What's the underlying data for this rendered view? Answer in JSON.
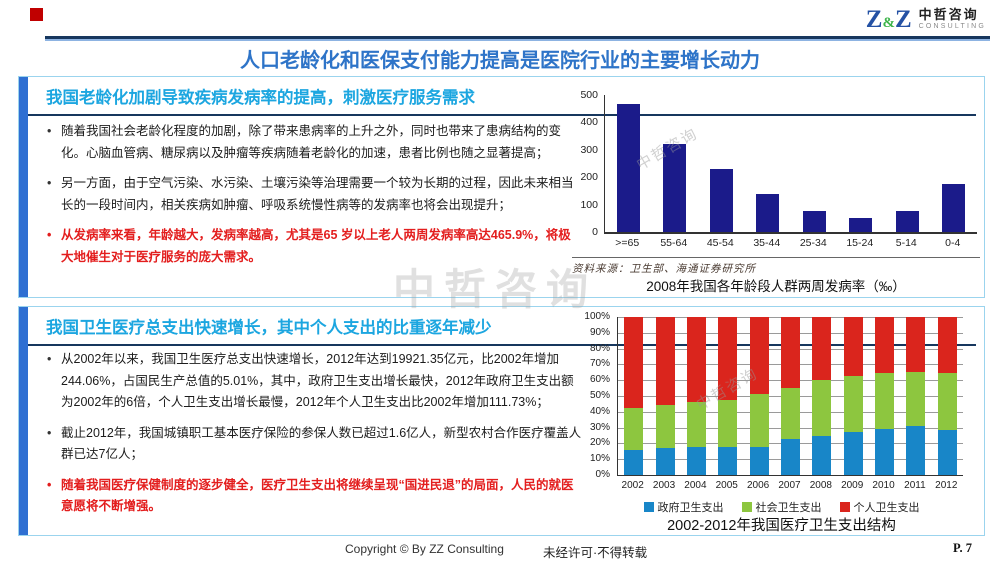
{
  "logo": {
    "z1": "Z",
    "amp": "&",
    "z2": "Z",
    "name_cn": "中哲咨询",
    "name_en": "CONSULTING"
  },
  "page_title": "人口老龄化和医保支付能力提高是医院行业的主要增长动力",
  "watermark": "中哲咨询",
  "colors": {
    "accent_blue": "#1ca6e0",
    "panel_bar_blue": "#2f6fd2",
    "title_blue": "#2e74c8",
    "dark_rule": "#17375e",
    "emphasis_red": "#e31e1e"
  },
  "section1": {
    "header": "我国老龄化加剧导致疾病发病率的提高，刺激医疗服务需求",
    "bullets": [
      {
        "text": "随着我国社会老龄化程度的加剧，除了带来患病率的上升之外，同时也带来了患病结构的变化。心脑血管病、糖尿病以及肿瘤等疾病随着老龄化的加速，患者比例也随之显著提高；",
        "emphasis": false
      },
      {
        "text": "另一方面，由于空气污染、水污染、土壤污染等治理需要一个较为长期的过程，因此未来相当长的一段时间内，相关疾病如肿瘤、呼吸系统慢性病等的发病率也将会出现提升；",
        "emphasis": false
      },
      {
        "text": "从发病率来看，年龄越大，发病率越高，尤其是65 岁以上老人两周发病率高达465.9%，将极大地催生对于医疗服务的庞大需求。",
        "emphasis": true
      }
    ]
  },
  "section2": {
    "header": "我国卫生医疗总支出快速增长，其中个人支出的比重逐年减少",
    "bullets": [
      {
        "text": "从2002年以来，我国卫生医疗总支出快速增长，2012年达到19921.35亿元，比2002年增加244.06%，占国民生产总值的5.01%，其中，政府卫生支出增长最快，2012年政府卫生支出额为2002年的6倍，个人卫生支出增长最慢，2012年个人卫生支出比2002年增加111.73%；",
        "emphasis": false
      },
      {
        "text": "截止2012年，我国城镇职工基本医疗保险的参保人数已超过1.6亿人，新型农村合作医疗覆盖人群已达7亿人；",
        "emphasis": false
      },
      {
        "text": "随着我国医疗保健制度的逐步健全，医疗卫生支出将继续呈现“国进民退”的局面，人民的就医意愿将不断增强。",
        "emphasis": true
      }
    ]
  },
  "footer": {
    "copyright": "Copyright © By  ZZ Consulting",
    "notice": "未经许可·不得转载",
    "page": "P. 7"
  },
  "chart_data": [
    {
      "type": "bar",
      "title": "2008年我国各年龄段人群两周发病率（‰）",
      "source": "资料来源：卫生部、海通证券研究所",
      "categories": [
        ">=65",
        "55-64",
        "45-54",
        "35-44",
        "25-34",
        "15-24",
        "5-14",
        "0-4"
      ],
      "values": [
        466,
        320,
        230,
        137,
        77,
        50,
        77,
        175
      ],
      "xlabel": "",
      "ylabel": "",
      "ylim": [
        0,
        500
      ],
      "ytick_step": 100,
      "grid": false,
      "bar_color": "#1b1b8a",
      "legend_position": "none"
    },
    {
      "type": "bar",
      "stacked": true,
      "percent": true,
      "title": "2002-2012年我国医疗卫生支出结构",
      "categories": [
        "2002",
        "2003",
        "2004",
        "2005",
        "2006",
        "2007",
        "2008",
        "2009",
        "2010",
        "2011",
        "2012"
      ],
      "series": [
        {
          "name": "政府卫生支出",
          "color": "#1886c8",
          "values": [
            16,
            17,
            17.5,
            18,
            18,
            22.5,
            25,
            27.5,
            29,
            31,
            28.5
          ]
        },
        {
          "name": "社会卫生支出",
          "color": "#8dc63f",
          "values": [
            26.5,
            27,
            28.5,
            29.5,
            33,
            32.5,
            35,
            35,
            35.5,
            34,
            36
          ]
        },
        {
          "name": "个人卫生支出",
          "color": "#da251d",
          "values": [
            57.5,
            56,
            54,
            52.5,
            49,
            45,
            40,
            37.5,
            35.5,
            35,
            35.5
          ]
        }
      ],
      "xlabel": "",
      "ylabel": "",
      "ylim": [
        0,
        100
      ],
      "ytick_step": 10,
      "ytick_suffix": "%",
      "grid": true,
      "legend_position": "bottom"
    }
  ]
}
